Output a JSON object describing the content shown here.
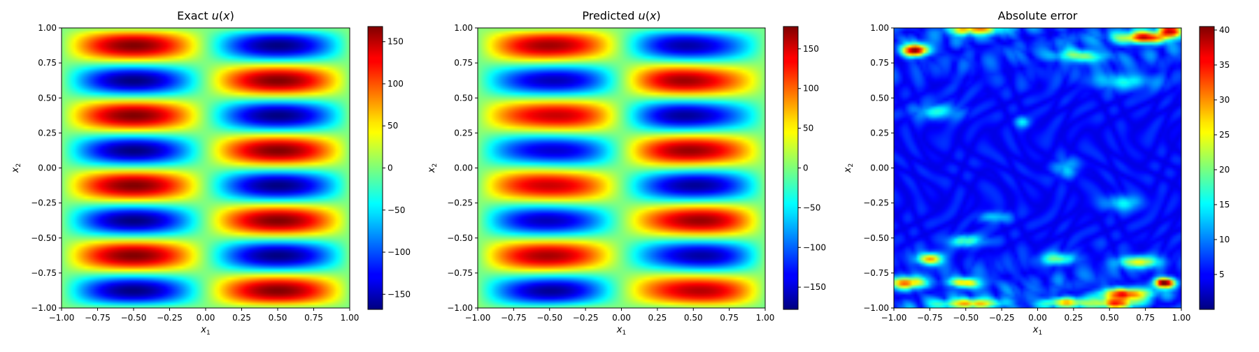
{
  "chart_data": [
    {
      "type": "heatmap",
      "title_prefix": "Exact ",
      "title_var": "u",
      "title_suffix": "(x)",
      "xlabel": {
        "base": "x",
        "sub": "1"
      },
      "ylabel": {
        "base": "x",
        "sub": "2"
      },
      "xlim": [
        -1,
        1
      ],
      "ylim": [
        -1,
        1
      ],
      "x_ticks": [
        -1.0,
        -0.75,
        -0.5,
        -0.25,
        0.0,
        0.25,
        0.5,
        0.75,
        1.0
      ],
      "x_tick_labels": [
        "−1.00",
        "−0.75",
        "−0.50",
        "−0.25",
        "0.00",
        "0.25",
        "0.50",
        "0.75",
        "1.00"
      ],
      "y_ticks": [
        -1.0,
        -0.75,
        -0.5,
        -0.25,
        0.0,
        0.25,
        0.5,
        0.75,
        1.0
      ],
      "y_tick_labels": [
        "−1.00",
        "−0.75",
        "−0.50",
        "−0.25",
        "0.00",
        "0.25",
        "0.50",
        "0.75",
        "1.00"
      ],
      "colormap": "jet",
      "colorbar": {
        "vmin": -168,
        "vmax": 168,
        "ticks": [
          -150,
          -100,
          -50,
          0,
          50,
          100,
          150
        ],
        "tick_labels": [
          "−150",
          "−100",
          "−50",
          "0",
          "50",
          "100",
          "150"
        ]
      },
      "field": {
        "kind": "exact",
        "amplitude": 168,
        "fx": 1,
        "fy": 4
      }
    },
    {
      "type": "heatmap",
      "title_prefix": "Predicted ",
      "title_var": "u",
      "title_suffix": "(x)",
      "xlabel": {
        "base": "x",
        "sub": "1"
      },
      "ylabel": {
        "base": "x",
        "sub": "2"
      },
      "xlim": [
        -1,
        1
      ],
      "ylim": [
        -1,
        1
      ],
      "x_ticks": [
        -1.0,
        -0.75,
        -0.5,
        -0.25,
        0.0,
        0.25,
        0.5,
        0.75,
        1.0
      ],
      "x_tick_labels": [
        "−1.00",
        "−0.75",
        "−0.50",
        "−0.25",
        "0.00",
        "0.25",
        "0.50",
        "0.75",
        "1.00"
      ],
      "y_ticks": [
        -1.0,
        -0.75,
        -0.5,
        -0.25,
        0.0,
        0.25,
        0.5,
        0.75,
        1.0
      ],
      "y_tick_labels": [
        "−1.00",
        "−0.75",
        "−0.50",
        "−0.25",
        "0.00",
        "0.25",
        "0.50",
        "0.75",
        "1.00"
      ],
      "colormap": "jet",
      "colorbar": {
        "vmin": -178,
        "vmax": 178,
        "ticks": [
          -150,
          -100,
          -50,
          0,
          50,
          100,
          150
        ],
        "tick_labels": [
          "−150",
          "−100",
          "−50",
          "0",
          "50",
          "100",
          "150"
        ]
      },
      "field": {
        "kind": "predicted",
        "amplitude": 168,
        "fx": 1,
        "fy": 4
      }
    },
    {
      "type": "heatmap",
      "title_prefix": "Absolute error",
      "title_var": "",
      "title_suffix": "",
      "xlabel": {
        "base": "x",
        "sub": "1"
      },
      "ylabel": {
        "base": "x",
        "sub": "2"
      },
      "xlim": [
        -1,
        1
      ],
      "ylim": [
        -1,
        1
      ],
      "x_ticks": [
        -1.0,
        -0.75,
        -0.5,
        -0.25,
        0.0,
        0.25,
        0.5,
        0.75,
        1.0
      ],
      "x_tick_labels": [
        "−1.00",
        "−0.75",
        "−0.50",
        "−0.25",
        "0.00",
        "0.25",
        "0.50",
        "0.75",
        "1.00"
      ],
      "y_ticks": [
        -1.0,
        -0.75,
        -0.5,
        -0.25,
        0.0,
        0.25,
        0.5,
        0.75,
        1.0
      ],
      "y_tick_labels": [
        "−1.00",
        "−0.75",
        "−0.50",
        "−0.25",
        "0.00",
        "0.25",
        "0.50",
        "0.75",
        "1.00"
      ],
      "colormap": "jet",
      "colorbar": {
        "vmin": 0,
        "vmax": 40.5,
        "ticks": [
          5,
          10,
          15,
          20,
          25,
          30,
          35,
          40
        ],
        "tick_labels": [
          "5",
          "10",
          "15",
          "20",
          "25",
          "30",
          "35",
          "40"
        ]
      },
      "field": {
        "kind": "error",
        "background": 4,
        "hotspots": [
          {
            "x": -0.85,
            "y": 0.84,
            "value": 38,
            "sx": 0.06,
            "sy": 0.03
          },
          {
            "x": 0.75,
            "y": 0.93,
            "value": 33,
            "sx": 0.12,
            "sy": 0.03
          },
          {
            "x": 0.93,
            "y": 0.98,
            "value": 30,
            "sx": 0.06,
            "sy": 0.03
          },
          {
            "x": -0.45,
            "y": 0.99,
            "value": 25,
            "sx": 0.12,
            "sy": 0.025
          },
          {
            "x": 0.3,
            "y": 0.8,
            "value": 20,
            "sx": 0.12,
            "sy": 0.03
          },
          {
            "x": 0.6,
            "y": 0.62,
            "value": 14,
            "sx": 0.15,
            "sy": 0.04
          },
          {
            "x": -0.7,
            "y": 0.4,
            "value": 14,
            "sx": 0.12,
            "sy": 0.04
          },
          {
            "x": -0.1,
            "y": 0.33,
            "value": 13,
            "sx": 0.04,
            "sy": 0.03
          },
          {
            "x": 0.2,
            "y": 0.0,
            "value": 12,
            "sx": 0.06,
            "sy": 0.05
          },
          {
            "x": -0.3,
            "y": -0.35,
            "value": 13,
            "sx": 0.08,
            "sy": 0.03
          },
          {
            "x": 0.6,
            "y": -0.25,
            "value": 14,
            "sx": 0.1,
            "sy": 0.04
          },
          {
            "x": -0.5,
            "y": -0.52,
            "value": 16,
            "sx": 0.1,
            "sy": 0.03
          },
          {
            "x": -0.75,
            "y": -0.65,
            "value": 28,
            "sx": 0.06,
            "sy": 0.03
          },
          {
            "x": 0.15,
            "y": -0.65,
            "value": 18,
            "sx": 0.08,
            "sy": 0.03
          },
          {
            "x": 0.7,
            "y": -0.67,
            "value": 22,
            "sx": 0.1,
            "sy": 0.03
          },
          {
            "x": -0.9,
            "y": -0.82,
            "value": 28,
            "sx": 0.08,
            "sy": 0.03
          },
          {
            "x": -0.5,
            "y": -0.82,
            "value": 26,
            "sx": 0.08,
            "sy": 0.025
          },
          {
            "x": 0.6,
            "y": -0.9,
            "value": 30,
            "sx": 0.12,
            "sy": 0.03
          },
          {
            "x": 0.88,
            "y": -0.82,
            "value": 40,
            "sx": 0.05,
            "sy": 0.025
          },
          {
            "x": -0.45,
            "y": -0.97,
            "value": 24,
            "sx": 0.15,
            "sy": 0.025
          },
          {
            "x": 0.2,
            "y": -0.96,
            "value": 22,
            "sx": 0.12,
            "sy": 0.025
          },
          {
            "x": 0.55,
            "y": -0.97,
            "value": 26,
            "sx": 0.1,
            "sy": 0.025
          }
        ]
      }
    }
  ]
}
